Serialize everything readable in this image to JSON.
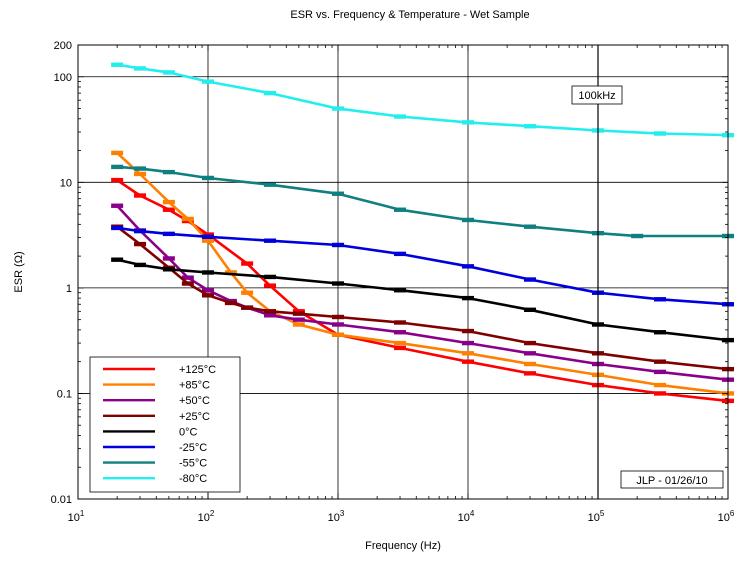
{
  "chart_data": {
    "type": "line",
    "title": "ESR  vs. Frequency & Temperature - Wet Sample",
    "xlabel": "Frequency (Hz)",
    "ylabel": "ESR  (Ω)",
    "xscale": "log",
    "yscale": "log",
    "xlim": [
      10,
      1000000
    ],
    "ylim": [
      0.01,
      200
    ],
    "grid": true,
    "legend_position": "bottom-left",
    "x_ticks": [
      {
        "base": "10",
        "exp": "1"
      },
      {
        "base": "10",
        "exp": "2"
      },
      {
        "base": "10",
        "exp": "3"
      },
      {
        "base": "10",
        "exp": "4"
      },
      {
        "base": "10",
        "exp": "5"
      },
      {
        "base": "10",
        "exp": "6"
      }
    ],
    "y_ticks": [
      "0.01",
      "0.1",
      "1",
      "10",
      "100",
      "200"
    ],
    "annotations": {
      "marker_label": "100kHz",
      "signature": "JLP  - 01/26/10"
    },
    "series": [
      {
        "name": "+125°C",
        "color": "#ff0000",
        "x": [
          20,
          30,
          50,
          70,
          100,
          200,
          300,
          500,
          1000,
          3000,
          10000,
          30000,
          100000,
          300000,
          1000000
        ],
        "y": [
          10.5,
          7.5,
          5.5,
          4.3,
          3.2,
          1.7,
          1.05,
          0.6,
          0.36,
          0.27,
          0.2,
          0.155,
          0.12,
          0.1,
          0.085
        ]
      },
      {
        "name": "+85°C",
        "color": "#ff8000",
        "x": [
          20,
          30,
          50,
          70,
          100,
          150,
          200,
          300,
          500,
          1000,
          3000,
          10000,
          30000,
          100000,
          300000,
          1000000
        ],
        "y": [
          19,
          12,
          6.5,
          4.5,
          2.8,
          1.4,
          0.9,
          0.6,
          0.45,
          0.36,
          0.3,
          0.24,
          0.19,
          0.15,
          0.12,
          0.1
        ]
      },
      {
        "name": "+50°C",
        "color": "#8b008b",
        "x": [
          20,
          30,
          50,
          70,
          100,
          150,
          200,
          300,
          500,
          1000,
          3000,
          10000,
          30000,
          100000,
          300000,
          1000000
        ],
        "y": [
          6,
          3.5,
          1.9,
          1.25,
          0.95,
          0.75,
          0.65,
          0.55,
          0.5,
          0.45,
          0.38,
          0.3,
          0.24,
          0.19,
          0.16,
          0.135
        ]
      },
      {
        "name": "+25°C",
        "color": "#800000",
        "x": [
          20,
          30,
          50,
          70,
          100,
          150,
          200,
          300,
          500,
          1000,
          3000,
          10000,
          30000,
          100000,
          300000,
          1000000
        ],
        "y": [
          3.8,
          2.6,
          1.55,
          1.1,
          0.85,
          0.72,
          0.65,
          0.6,
          0.57,
          0.53,
          0.47,
          0.39,
          0.3,
          0.24,
          0.2,
          0.17
        ]
      },
      {
        "name": "0°C",
        "color": "#000000",
        "x": [
          20,
          30,
          50,
          100,
          300,
          1000,
          3000,
          10000,
          30000,
          100000,
          300000,
          1000000
        ],
        "y": [
          1.85,
          1.65,
          1.5,
          1.4,
          1.27,
          1.1,
          0.95,
          0.8,
          0.62,
          0.45,
          0.38,
          0.32
        ]
      },
      {
        "name": "-25°C",
        "color": "#0000dd",
        "x": [
          20,
          30,
          50,
          100,
          300,
          1000,
          3000,
          10000,
          30000,
          100000,
          300000,
          1000000
        ],
        "y": [
          3.7,
          3.45,
          3.25,
          3.05,
          2.8,
          2.55,
          2.1,
          1.6,
          1.2,
          0.9,
          0.78,
          0.7
        ]
      },
      {
        "name": "-55°C",
        "color": "#0f7f7f",
        "x": [
          20,
          30,
          50,
          100,
          300,
          1000,
          3000,
          10000,
          30000,
          100000,
          200000,
          1000000
        ],
        "y": [
          14,
          13.5,
          12.5,
          11,
          9.5,
          7.8,
          5.5,
          4.4,
          3.8,
          3.3,
          3.1,
          3.1
        ]
      },
      {
        "name": "-80°C",
        "color": "#22eeee",
        "x": [
          20,
          30,
          50,
          100,
          300,
          1000,
          3000,
          10000,
          30000,
          100000,
          300000,
          1000000
        ],
        "y": [
          130,
          120,
          110,
          90,
          70,
          50,
          42,
          37,
          34,
          31,
          29,
          28
        ]
      }
    ]
  }
}
